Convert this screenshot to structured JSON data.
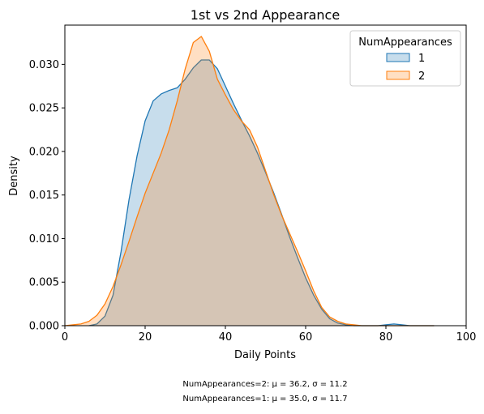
{
  "chart_data": {
    "type": "area",
    "title": "1st vs 2nd Appearance",
    "xlabel": "Daily Points",
    "ylabel": "Density",
    "xlim": [
      0,
      100
    ],
    "ylim": [
      0,
      0.0345
    ],
    "grid": false,
    "legend_placement": "top-right",
    "x_ticks": [
      "0",
      "20",
      "40",
      "60",
      "80",
      "100"
    ],
    "y_ticks": [
      "0.000",
      "0.005",
      "0.010",
      "0.015",
      "0.020",
      "0.025",
      "0.030"
    ],
    "legend": {
      "title": "NumAppearances",
      "entries": [
        "1",
        "2"
      ]
    },
    "series": [
      {
        "name": "1",
        "color": "#1f77b4",
        "fill": "#1f77b4",
        "x": [
          6,
          8,
          10,
          12,
          14,
          16,
          18,
          20,
          22,
          24,
          26,
          28,
          30,
          32,
          34,
          36,
          38,
          40,
          42,
          44,
          46,
          48,
          50,
          52,
          54,
          56,
          58,
          60,
          62,
          64,
          66,
          68,
          70,
          72,
          74,
          76,
          78,
          80,
          82,
          84,
          86,
          88,
          90,
          92
        ],
        "y": [
          0.0,
          0.0002,
          0.0011,
          0.0035,
          0.0085,
          0.0145,
          0.0195,
          0.0235,
          0.0258,
          0.0266,
          0.027,
          0.0273,
          0.0283,
          0.0296,
          0.0305,
          0.0305,
          0.0295,
          0.0275,
          0.0255,
          0.0236,
          0.0218,
          0.0198,
          0.0176,
          0.0153,
          0.0128,
          0.0102,
          0.0078,
          0.0055,
          0.0035,
          0.0019,
          0.0008,
          0.0003,
          0.0001,
          0.0,
          0.0,
          0.0,
          0.0,
          0.0001,
          0.0002,
          0.0001,
          0.0,
          0.0,
          0.0,
          0.0
        ]
      },
      {
        "name": "2",
        "color": "#ff7f0e",
        "fill": "#ff7f0e",
        "x": [
          0,
          2,
          4,
          6,
          8,
          10,
          12,
          14,
          16,
          18,
          20,
          22,
          24,
          26,
          28,
          30,
          32,
          34,
          36,
          38,
          40,
          42,
          44,
          46,
          48,
          50,
          52,
          54,
          56,
          58,
          60,
          62,
          64,
          66,
          68,
          70,
          72,
          74,
          76,
          78,
          80,
          84,
          88,
          92
        ],
        "y": [
          0.0,
          0.0001,
          0.0002,
          0.0005,
          0.0012,
          0.0025,
          0.0045,
          0.007,
          0.0097,
          0.0125,
          0.0152,
          0.0175,
          0.0198,
          0.0225,
          0.0258,
          0.0295,
          0.0325,
          0.0332,
          0.0315,
          0.0283,
          0.0265,
          0.0248,
          0.0235,
          0.0225,
          0.0205,
          0.0178,
          0.0151,
          0.0127,
          0.0106,
          0.0085,
          0.0063,
          0.004,
          0.0021,
          0.001,
          0.0005,
          0.0002,
          0.0001,
          0.0,
          0.0,
          0.0,
          0.0,
          0.0,
          0.0,
          0.0
        ]
      }
    ],
    "annotations": [
      "NumAppearances=2: μ = 36.2, σ = 11.2",
      "NumAppearances=1: μ = 35.0, σ = 11.7"
    ]
  }
}
